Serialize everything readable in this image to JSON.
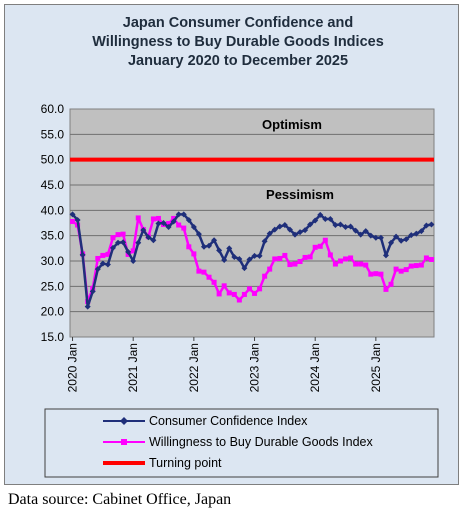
{
  "chart_data": {
    "type": "line",
    "title_lines": [
      "Japan Consumer Confidence and",
      "Willingness to Buy Durable Goods Indices",
      "January 2020 to December 2025"
    ],
    "ylim": [
      15.0,
      60.0
    ],
    "yticks": [
      "15.0",
      "20.0",
      "25.0",
      "30.0",
      "35.0",
      "40.0",
      "45.0",
      "50.0",
      "55.0",
      "60.0"
    ],
    "x_start": "2020-01",
    "x_end": "2025-12",
    "xtick_labels": [
      "2020 Jan",
      "2021 Jan",
      "2022 Jan",
      "2023 Jan",
      "2024 Jan",
      "2025 Jan"
    ],
    "region_labels": {
      "upper": "Optimism",
      "lower": "Pessimism"
    },
    "turning_point": 50.0,
    "series": [
      {
        "name": "Consumer Confidence Index",
        "color": "#1f2f7a",
        "marker": "diamond",
        "values": [
          39.2,
          38.1,
          31.2,
          21.0,
          24.0,
          28.4,
          29.5,
          29.3,
          32.6,
          33.6,
          33.7,
          31.8,
          30.0,
          33.6,
          36.1,
          34.7,
          34.1,
          37.4,
          37.5,
          36.7,
          37.8,
          39.2,
          39.2,
          38.1,
          36.7,
          35.3,
          32.8,
          33.0,
          34.1,
          32.1,
          30.2,
          32.5,
          30.8,
          30.4,
          28.6,
          30.3,
          31.0,
          31.0,
          33.9,
          35.4,
          36.2,
          36.8,
          37.1,
          36.2,
          35.2,
          35.7,
          36.1,
          37.2,
          38.0,
          39.1,
          38.3,
          38.3,
          37.1,
          37.2,
          36.7,
          36.8,
          36.0,
          35.2,
          35.9,
          35.0,
          34.6,
          34.6,
          31.1,
          33.6,
          34.8,
          34.0,
          34.3,
          35.1,
          35.4,
          35.9,
          37.0,
          37.2
        ]
      },
      {
        "name": "Willingness to Buy Durable Goods Index",
        "color": "#ff00ff",
        "marker": "square",
        "values": [
          37.8,
          37.1,
          31.4,
          22.0,
          24.6,
          30.5,
          31.1,
          31.3,
          34.6,
          35.2,
          35.3,
          31.3,
          32.0,
          38.5,
          36.2,
          34.8,
          38.3,
          38.4,
          37.2,
          37.4,
          38.4,
          37.1,
          36.5,
          32.8,
          31.4,
          28.0,
          27.8,
          26.8,
          25.8,
          23.5,
          25.1,
          23.7,
          23.4,
          22.3,
          23.4,
          24.5,
          23.6,
          24.5,
          27.0,
          28.4,
          30.4,
          30.5,
          31.1,
          29.3,
          29.4,
          29.9,
          30.7,
          30.8,
          32.7,
          32.9,
          34.1,
          31.2,
          29.4,
          30.0,
          30.4,
          30.6,
          29.4,
          29.4,
          29.2,
          27.4,
          27.5,
          27.4,
          24.4,
          25.4,
          28.4,
          28.0,
          28.3,
          29.0,
          29.1,
          29.2,
          30.6,
          30.3
        ]
      }
    ],
    "legend": [
      {
        "label": "Consumer Confidence Index",
        "color": "#1f2f7a",
        "style": "line-diamond"
      },
      {
        "label": "Willingness to Buy Durable Goods Index",
        "color": "#ff00ff",
        "style": "line-square"
      },
      {
        "label": "Turning point",
        "color": "#ff0000",
        "style": "thick-line"
      }
    ],
    "plot_background": "#c0c0c0",
    "grid": true
  },
  "source_note": "Data source: Cabinet Office, Japan"
}
